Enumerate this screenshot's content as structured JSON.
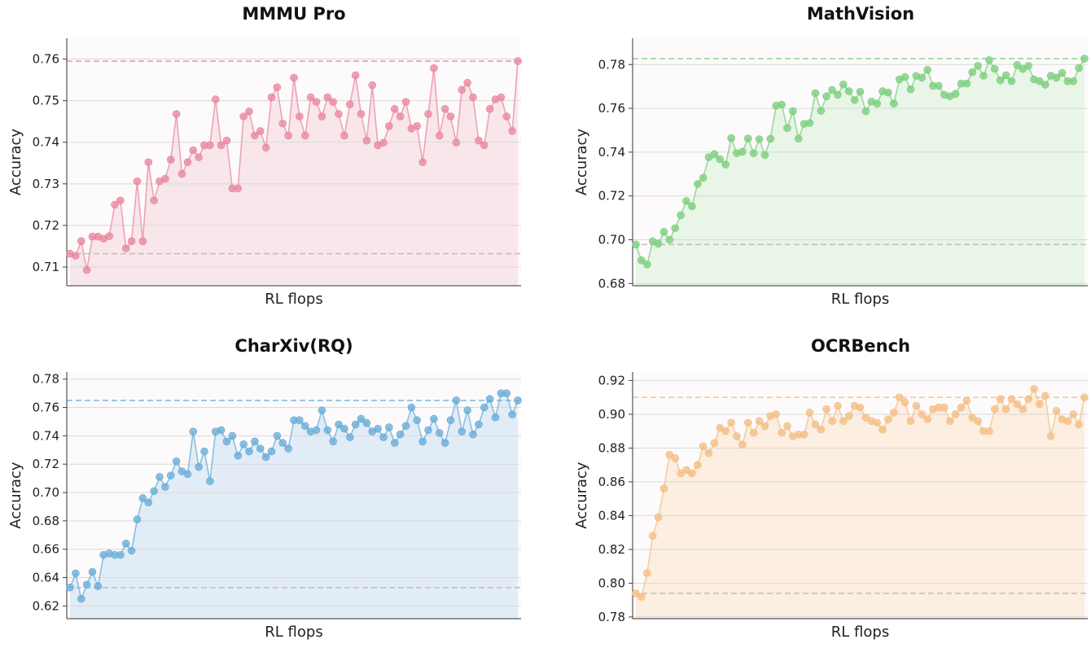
{
  "chart_data": [
    {
      "type": "line",
      "title": "MMMU Pro",
      "xlabel": "RL flops",
      "ylabel": "Accuracy",
      "ylim": [
        0.7055,
        0.765
      ],
      "yticks": [
        0.71,
        0.72,
        0.73,
        0.74,
        0.75,
        0.76
      ],
      "ytick_labels": [
        "0.71",
        "0.72",
        "0.73",
        "0.74",
        "0.75",
        "0.76"
      ],
      "color": "#e8899f",
      "fill_color": "#f7e2e7",
      "grid": true,
      "reference_lines": [
        0.7595,
        0.7132
      ],
      "y": [
        0.7132,
        0.7127,
        0.7162,
        0.7093,
        0.7173,
        0.7173,
        0.7168,
        0.7174,
        0.725,
        0.726,
        0.7145,
        0.7162,
        0.7306,
        0.7162,
        0.7352,
        0.726,
        0.7306,
        0.7312,
        0.7358,
        0.7468,
        0.7324,
        0.7352,
        0.7381,
        0.7364,
        0.7393,
        0.7393,
        0.7503,
        0.7393,
        0.7404,
        0.7289,
        0.7289,
        0.7462,
        0.7474,
        0.7416,
        0.7427,
        0.7387,
        0.7508,
        0.7532,
        0.7445,
        0.7416,
        0.7555,
        0.7462,
        0.7416,
        0.7508,
        0.7497,
        0.7462,
        0.7508,
        0.7497,
        0.7468,
        0.7416,
        0.7491,
        0.7561,
        0.7468,
        0.7404,
        0.7537,
        0.7393,
        0.7399,
        0.7439,
        0.748,
        0.7462,
        0.7497,
        0.7433,
        0.7439,
        0.7352,
        0.7468,
        0.7578,
        0.7416,
        0.748,
        0.7462,
        0.7399,
        0.7526,
        0.7543,
        0.7508,
        0.7404,
        0.7393,
        0.748,
        0.7503,
        0.7508,
        0.7462,
        0.7427,
        0.7595
      ]
    },
    {
      "type": "line",
      "title": "MathVision",
      "xlabel": "RL flops",
      "ylabel": "Accuracy",
      "ylim": [
        0.679,
        0.792
      ],
      "yticks": [
        0.68,
        0.7,
        0.72,
        0.74,
        0.76,
        0.78
      ],
      "ytick_labels": [
        "0.68",
        "0.70",
        "0.72",
        "0.74",
        "0.76",
        "0.78"
      ],
      "color": "#7ccf7e",
      "fill_color": "#e4f3e3",
      "grid": true,
      "reference_lines": [
        0.7827,
        0.6978
      ],
      "y": [
        0.6978,
        0.6906,
        0.6887,
        0.6993,
        0.6982,
        0.7036,
        0.7,
        0.7053,
        0.7112,
        0.7177,
        0.7153,
        0.7255,
        0.7283,
        0.7377,
        0.7391,
        0.7368,
        0.7343,
        0.7464,
        0.7395,
        0.7402,
        0.7462,
        0.7395,
        0.7459,
        0.7387,
        0.7461,
        0.7612,
        0.7617,
        0.751,
        0.7587,
        0.7462,
        0.7529,
        0.7533,
        0.7669,
        0.7589,
        0.7655,
        0.7684,
        0.7662,
        0.7709,
        0.7678,
        0.7638,
        0.7676,
        0.7587,
        0.7631,
        0.7622,
        0.7678,
        0.7672,
        0.7622,
        0.7732,
        0.7743,
        0.7687,
        0.7748,
        0.774,
        0.7776,
        0.7703,
        0.7703,
        0.7662,
        0.7655,
        0.7666,
        0.7713,
        0.7713,
        0.7765,
        0.7794,
        0.7749,
        0.782,
        0.778,
        0.7728,
        0.7751,
        0.7724,
        0.7798,
        0.778,
        0.7794,
        0.7732,
        0.7724,
        0.7708,
        0.7749,
        0.774,
        0.7762,
        0.7724,
        0.7724,
        0.7784,
        0.7827
      ]
    },
    {
      "type": "line",
      "title": "CharXiv(RQ)",
      "xlabel": "RL flops",
      "ylabel": "Accuracy",
      "ylim": [
        0.611,
        0.785
      ],
      "yticks": [
        0.62,
        0.64,
        0.66,
        0.68,
        0.7,
        0.72,
        0.74,
        0.76,
        0.78
      ],
      "ytick_labels": [
        "0.62",
        "0.64",
        "0.66",
        "0.68",
        "0.70",
        "0.72",
        "0.74",
        "0.76",
        "0.78"
      ],
      "color": "#6aaed8",
      "fill_color": "#dde9f4",
      "grid": true,
      "reference_lines": [
        0.765,
        0.633
      ],
      "y": [
        0.633,
        0.643,
        0.625,
        0.635,
        0.644,
        0.634,
        0.656,
        0.657,
        0.656,
        0.656,
        0.664,
        0.659,
        0.681,
        0.696,
        0.693,
        0.701,
        0.711,
        0.704,
        0.712,
        0.722,
        0.715,
        0.713,
        0.743,
        0.718,
        0.729,
        0.708,
        0.743,
        0.744,
        0.736,
        0.74,
        0.726,
        0.734,
        0.729,
        0.736,
        0.731,
        0.725,
        0.729,
        0.74,
        0.735,
        0.731,
        0.751,
        0.751,
        0.747,
        0.743,
        0.744,
        0.758,
        0.744,
        0.736,
        0.748,
        0.745,
        0.739,
        0.748,
        0.752,
        0.749,
        0.743,
        0.745,
        0.739,
        0.746,
        0.735,
        0.741,
        0.747,
        0.76,
        0.751,
        0.736,
        0.744,
        0.752,
        0.742,
        0.735,
        0.751,
        0.765,
        0.743,
        0.758,
        0.741,
        0.748,
        0.76,
        0.766,
        0.753,
        0.77,
        0.77,
        0.755,
        0.765
      ]
    },
    {
      "type": "line",
      "title": "OCRBench",
      "xlabel": "RL flops",
      "ylabel": "Accuracy",
      "ylim": [
        0.779,
        0.925
      ],
      "yticks": [
        0.78,
        0.8,
        0.82,
        0.84,
        0.86,
        0.88,
        0.9,
        0.92
      ],
      "ytick_labels": [
        "0.78",
        "0.80",
        "0.82",
        "0.84",
        "0.86",
        "0.88",
        "0.90",
        "0.92"
      ],
      "color": "#f3bf86",
      "fill_color": "#fbebdb",
      "grid": true,
      "reference_lines": [
        0.91,
        0.794
      ],
      "y": [
        0.794,
        0.792,
        0.806,
        0.828,
        0.839,
        0.856,
        0.876,
        0.874,
        0.865,
        0.867,
        0.865,
        0.87,
        0.881,
        0.877,
        0.883,
        0.892,
        0.89,
        0.895,
        0.887,
        0.882,
        0.895,
        0.889,
        0.896,
        0.893,
        0.899,
        0.9,
        0.889,
        0.893,
        0.887,
        0.888,
        0.888,
        0.901,
        0.894,
        0.891,
        0.903,
        0.896,
        0.905,
        0.896,
        0.899,
        0.905,
        0.904,
        0.898,
        0.896,
        0.895,
        0.891,
        0.897,
        0.901,
        0.91,
        0.907,
        0.896,
        0.905,
        0.9,
        0.897,
        0.903,
        0.904,
        0.904,
        0.896,
        0.9,
        0.904,
        0.908,
        0.898,
        0.896,
        0.89,
        0.89,
        0.903,
        0.909,
        0.903,
        0.909,
        0.906,
        0.903,
        0.909,
        0.915,
        0.906,
        0.911,
        0.887,
        0.902,
        0.897,
        0.896,
        0.9,
        0.894,
        0.91
      ]
    }
  ]
}
